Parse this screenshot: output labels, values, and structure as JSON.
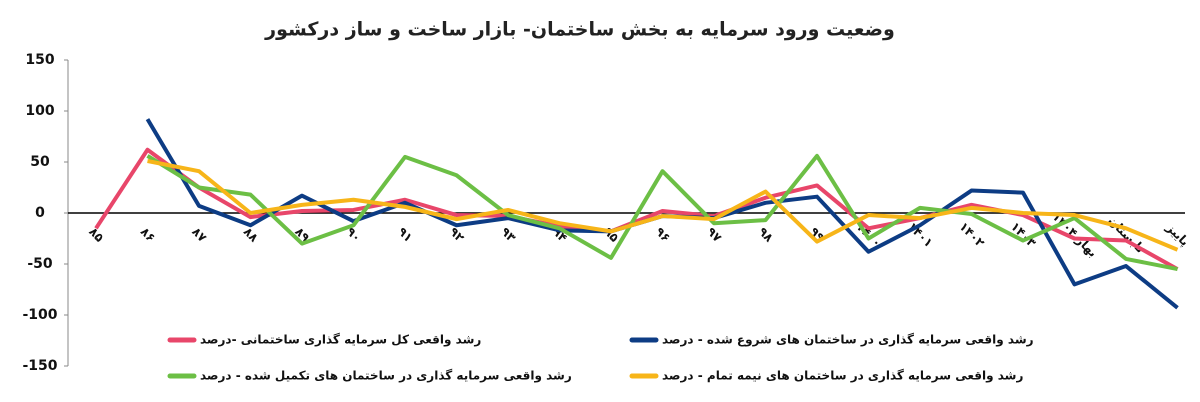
{
  "chart_data": {
    "type": "line",
    "title": "وضعیت ورود سرمایه به بخش ساختمان- بازار ساخت و ساز درکشور",
    "categories": [
      "۸۵",
      "۸۶",
      "۸۷",
      "۸۸",
      "۸۹",
      "۹۰",
      "۹۱",
      "۹۲",
      "۹۳",
      "۹۴",
      "۹۵",
      "۹۶",
      "۹۷",
      "۹۸",
      "۹۹",
      "۱۴۰۰",
      "۱۴۰۱",
      "۱۴۰۲",
      "۱۴۰۳",
      "بهار ۱۴۰۴",
      "تابستان",
      "پاییز"
    ],
    "ylim": [
      -150,
      150
    ],
    "yticks": [
      -150,
      -100,
      -50,
      0,
      50,
      100,
      150
    ],
    "series": [
      {
        "name": "رشد واقعی کل سرمایه گذاری ساختمانی -درصد",
        "color": "#e8466a",
        "values": [
          -15,
          62,
          25,
          -4,
          2,
          3,
          13,
          -2,
          -3,
          -13,
          -18,
          2,
          -3,
          15,
          27,
          -15,
          -5,
          8,
          -2,
          -25,
          -27,
          -55
        ]
      },
      {
        "name": "رشد واقعی سرمایه گذاری در ساختمان های شروع شده - درصد",
        "color": "#0d3c84",
        "values": [
          null,
          92,
          7,
          -12,
          17,
          -8,
          10,
          -12,
          -5,
          -17,
          -18,
          -3,
          -5,
          10,
          16,
          -38,
          -12,
          22,
          20,
          -70,
          -52,
          -93
        ]
      },
      {
        "name": "رشد واقعی سرمایه گذاری در ساختمان های تکمیل شده - درصد",
        "color": "#6cbf45",
        "values": [
          null,
          56,
          25,
          18,
          -30,
          -12,
          55,
          37,
          -2,
          -15,
          -44,
          41,
          -10,
          -7,
          56,
          -25,
          5,
          -1,
          -27,
          -5,
          -45,
          -55
        ]
      },
      {
        "name": "رشد واقعی سرمایه گذاری در ساختمان های نیمه تمام - درصد",
        "color": "#f7b519",
        "values": [
          null,
          51,
          41,
          0,
          8,
          13,
          6,
          -6,
          3,
          -10,
          -18,
          -3,
          -6,
          21,
          -28,
          -2,
          -5,
          5,
          0,
          -2,
          -15,
          -36
        ]
      }
    ]
  }
}
